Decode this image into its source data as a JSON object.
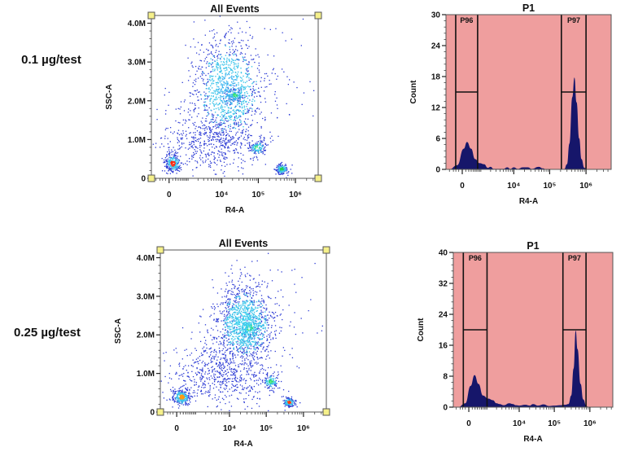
{
  "row_labels": [
    "0.1 µg/test",
    "0.25 µg/test"
  ],
  "colors": {
    "histogram_background": "#ef9e9e",
    "histogram_fill": "#16166a",
    "gate_line": "#111111",
    "dot_low_density": "#2b3ad4",
    "dot_mid_density": "#3cc4ea",
    "gate_handle": "#f5f08a"
  },
  "chart_data": [
    {
      "type": "scatter",
      "title": "All Events",
      "xlabel": "R4-A",
      "ylabel": "SSC-A",
      "x_scale": "biexponential",
      "xlim": [
        -800,
        4100000
      ],
      "ylim": [
        0,
        4200000
      ],
      "x_ticks": [
        {
          "value": 0,
          "label": "0"
        },
        {
          "value": 10000,
          "label": "10⁴"
        },
        {
          "value": 100000,
          "label": "10⁵"
        },
        {
          "value": 1000000,
          "label": "10⁶"
        }
      ],
      "y_ticks": [
        {
          "value": 0,
          "label": "0"
        },
        {
          "value": 1000000,
          "label": "1.0M"
        },
        {
          "value": 2000000,
          "label": "2.0M"
        },
        {
          "value": 3000000,
          "label": "3.0M"
        },
        {
          "value": 4000000,
          "label": "4.0M"
        }
      ],
      "populations": [
        {
          "center": [
            15000,
            2300000
          ],
          "x_range": [
            1500,
            200000
          ],
          "y_range": [
            900000,
            4000000
          ],
          "events": 1100,
          "core_color": "#3cb4f0"
        },
        {
          "center": [
            5000,
            1000000
          ],
          "x_range": [
            200,
            300000
          ],
          "y_range": [
            100000,
            1800000
          ],
          "events": 500,
          "core_color": "#2b3ad4"
        },
        {
          "center": [
            22000,
            2150000
          ],
          "x_range": [
            12000,
            40000
          ],
          "y_range": [
            1950000,
            2350000
          ],
          "events": 120,
          "core_color": "#30e070"
        },
        {
          "center": [
            90,
            400000
          ],
          "x_range": [
            -150,
            400
          ],
          "y_range": [
            150000,
            650000
          ],
          "events": 250,
          "core_color": "#ff2a10"
        },
        {
          "center": [
            90000,
            800000
          ],
          "x_range": [
            50000,
            150000
          ],
          "y_range": [
            620000,
            980000
          ],
          "events": 120,
          "core_color": "#30e070"
        },
        {
          "center": [
            420000,
            250000
          ],
          "x_range": [
            280000,
            600000
          ],
          "y_range": [
            120000,
            400000
          ],
          "events": 150,
          "core_color": "#20d050"
        },
        {
          "center": [
            900000,
            2500000
          ],
          "x_range": [
            100000,
            4000000
          ],
          "y_range": [
            500000,
            4000000
          ],
          "events": 30,
          "core_color": "#2b3ad4"
        }
      ]
    },
    {
      "type": "area",
      "title": "P1",
      "xlabel": "R4-A",
      "ylabel": "Count",
      "x_scale": "biexponential",
      "xlim": [
        -720,
        4900000
      ],
      "ylim": [
        0,
        30
      ],
      "x_ticks": [
        {
          "value": 0,
          "label": "0"
        },
        {
          "value": 10000,
          "label": "10⁴"
        },
        {
          "value": 100000,
          "label": "10⁵"
        },
        {
          "value": 1000000,
          "label": "10⁶"
        }
      ],
      "y_ticks": [
        {
          "value": 0,
          "label": "0"
        },
        {
          "value": 6,
          "label": "6"
        },
        {
          "value": 12,
          "label": "12"
        },
        {
          "value": 18,
          "label": "18"
        },
        {
          "value": 24,
          "label": "24"
        },
        {
          "value": 30,
          "label": "30"
        }
      ],
      "gates": [
        {
          "label": "P96",
          "x_range": [
            -205,
            657
          ],
          "level": 15
        },
        {
          "label": "P97",
          "x_range": [
            210000,
            1000000
          ],
          "level": 15
        }
      ],
      "points": [
        [
          -500,
          0
        ],
        [
          -150,
          0.8
        ],
        [
          40,
          4
        ],
        [
          140,
          5.3
        ],
        [
          300,
          4
        ],
        [
          500,
          2
        ],
        [
          800,
          1.2
        ],
        [
          1200,
          1
        ],
        [
          1600,
          0.3
        ],
        [
          2000,
          0.5
        ],
        [
          2500,
          0.1
        ],
        [
          5000,
          0.1
        ],
        [
          6500,
          0.4
        ],
        [
          8000,
          0.1
        ],
        [
          10000,
          0.4
        ],
        [
          13000,
          0.1
        ],
        [
          18000,
          0.4
        ],
        [
          25000,
          0.4
        ],
        [
          32000,
          0.1
        ],
        [
          50000,
          0.5
        ],
        [
          65000,
          0.2
        ],
        [
          80000,
          0
        ],
        [
          250000,
          0
        ],
        [
          300000,
          1
        ],
        [
          350000,
          5
        ],
        [
          420000,
          14
        ],
        [
          480000,
          17.8
        ],
        [
          550000,
          13
        ],
        [
          650000,
          6
        ],
        [
          750000,
          2
        ],
        [
          900000,
          0.3
        ],
        [
          1100000,
          0
        ]
      ]
    },
    {
      "type": "scatter",
      "title": "All Events",
      "xlabel": "R4-A",
      "ylabel": "SSC-A",
      "x_scale": "biexponential",
      "xlim": [
        -700,
        4100000
      ],
      "ylim": [
        0,
        4200000
      ],
      "x_ticks": [
        {
          "value": 0,
          "label": "0"
        },
        {
          "value": 10000,
          "label": "10⁴"
        },
        {
          "value": 100000,
          "label": "10⁵"
        },
        {
          "value": 1000000,
          "label": "10⁶"
        }
      ],
      "y_ticks": [
        {
          "value": 0,
          "label": "0"
        },
        {
          "value": 1000000,
          "label": "1.0M"
        },
        {
          "value": 2000000,
          "label": "2.0M"
        },
        {
          "value": 3000000,
          "label": "3.0M"
        },
        {
          "value": 4000000,
          "label": "4.0M"
        }
      ],
      "populations": [
        {
          "center": [
            25000,
            2300000
          ],
          "x_range": [
            3000,
            150000
          ],
          "y_range": [
            1300000,
            3400000
          ],
          "events": 1200,
          "core_color": "#3cd0ee"
        },
        {
          "center": [
            5000,
            1000000
          ],
          "x_range": [
            300,
            300000
          ],
          "y_range": [
            100000,
            1800000
          ],
          "events": 600,
          "core_color": "#2b3ad4"
        },
        {
          "center": [
            35000,
            2200000
          ],
          "x_range": [
            15000,
            60000
          ],
          "y_range": [
            1900000,
            2500000
          ],
          "events": 150,
          "core_color": "#30e070"
        },
        {
          "center": [
            130,
            400000
          ],
          "x_range": [
            -150,
            500
          ],
          "y_range": [
            200000,
            600000
          ],
          "events": 250,
          "core_color": "#ff9a10"
        },
        {
          "center": [
            130000,
            800000
          ],
          "x_range": [
            80000,
            200000
          ],
          "y_range": [
            620000,
            1000000
          ],
          "events": 120,
          "core_color": "#30e070"
        },
        {
          "center": [
            400000,
            270000
          ],
          "x_range": [
            280000,
            600000
          ],
          "y_range": [
            150000,
            400000
          ],
          "events": 150,
          "core_color": "#ff4010"
        },
        {
          "center": [
            900000,
            2500000
          ],
          "x_range": [
            100000,
            4000000
          ],
          "y_range": [
            500000,
            4000000
          ],
          "events": 30,
          "core_color": "#2b3ad4"
        }
      ]
    },
    {
      "type": "area",
      "title": "P1",
      "xlabel": "R4-A",
      "ylabel": "Count",
      "x_scale": "biexponential",
      "xlim": [
        -690,
        4400000
      ],
      "ylim": [
        0,
        40
      ],
      "x_ticks": [
        {
          "value": 0,
          "label": "0"
        },
        {
          "value": 10000,
          "label": "10⁴"
        },
        {
          "value": 100000,
          "label": "10⁵"
        },
        {
          "value": 1000000,
          "label": "10⁶"
        }
      ],
      "y_ticks": [
        {
          "value": 0,
          "label": "0"
        },
        {
          "value": 8,
          "label": "8"
        },
        {
          "value": 16,
          "label": "16"
        },
        {
          "value": 24,
          "label": "24"
        },
        {
          "value": 32,
          "label": "32"
        },
        {
          "value": 40,
          "label": "40"
        }
      ],
      "gates": [
        {
          "label": "P96",
          "x_range": [
            -170,
            900
          ],
          "level": 20
        },
        {
          "label": "P97",
          "x_range": [
            175000,
            780000
          ],
          "level": 20
        }
      ],
      "points": [
        [
          -400,
          0
        ],
        [
          -100,
          1
        ],
        [
          50,
          5.5
        ],
        [
          180,
          8.3
        ],
        [
          350,
          6
        ],
        [
          600,
          3
        ],
        [
          1000,
          2.2
        ],
        [
          1500,
          1.8
        ],
        [
          2000,
          1
        ],
        [
          2500,
          0.8
        ],
        [
          3500,
          0.5
        ],
        [
          5000,
          1
        ],
        [
          6500,
          0.8
        ],
        [
          8000,
          0.5
        ],
        [
          10000,
          0.4
        ],
        [
          15000,
          0.6
        ],
        [
          20000,
          0.4
        ],
        [
          25000,
          0.8
        ],
        [
          35000,
          0.4
        ],
        [
          50000,
          0.7
        ],
        [
          70000,
          0.3
        ],
        [
          100000,
          0.4
        ],
        [
          150000,
          0.5
        ],
        [
          200000,
          0.6
        ],
        [
          250000,
          0.8
        ],
        [
          300000,
          3
        ],
        [
          350000,
          10
        ],
        [
          400000,
          19.8
        ],
        [
          450000,
          15
        ],
        [
          550000,
          6
        ],
        [
          650000,
          2
        ],
        [
          800000,
          0.3
        ],
        [
          900000,
          0
        ]
      ]
    }
  ]
}
